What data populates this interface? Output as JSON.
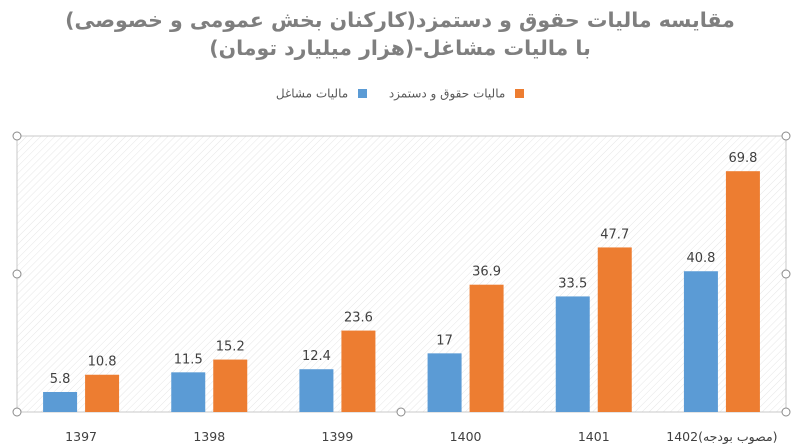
{
  "title": "مقایسه مالیات حقوق و دستمزد(کارکنان بخش عمومی و خصوصی) با مالیات مشاغل-(هزار میلیارد تومان)",
  "legend": {
    "series_1": "مالیات حقوق و دستمزد",
    "series_2": "مالیات مشاغل"
  },
  "colors": {
    "wage_tax": "#ed7d31",
    "business_tax": "#5b9bd5"
  },
  "chart_data": {
    "type": "bar",
    "title": "مقایسه مالیات حقوق و دستمزد(کارکنان بخش عمومی و خصوصی) با مالیات مشاغل-(هزار میلیارد تومان)",
    "categories": [
      "1397",
      "1398",
      "1399",
      "1400",
      "1401",
      "1402(مصوب بودجه)"
    ],
    "series": [
      {
        "name": "مالیات مشاغل",
        "values": [
          5.8,
          11.5,
          12.4,
          17,
          33.5,
          40.8
        ],
        "color": "#5b9bd5"
      },
      {
        "name": "مالیات حقوق و دستمزد",
        "values": [
          10.8,
          15.2,
          23.6,
          36.9,
          47.7,
          69.8
        ],
        "color": "#ed7d31"
      }
    ],
    "ylim": [
      0,
      80
    ],
    "grid": false,
    "legend_position": "top",
    "data_labels": true
  }
}
